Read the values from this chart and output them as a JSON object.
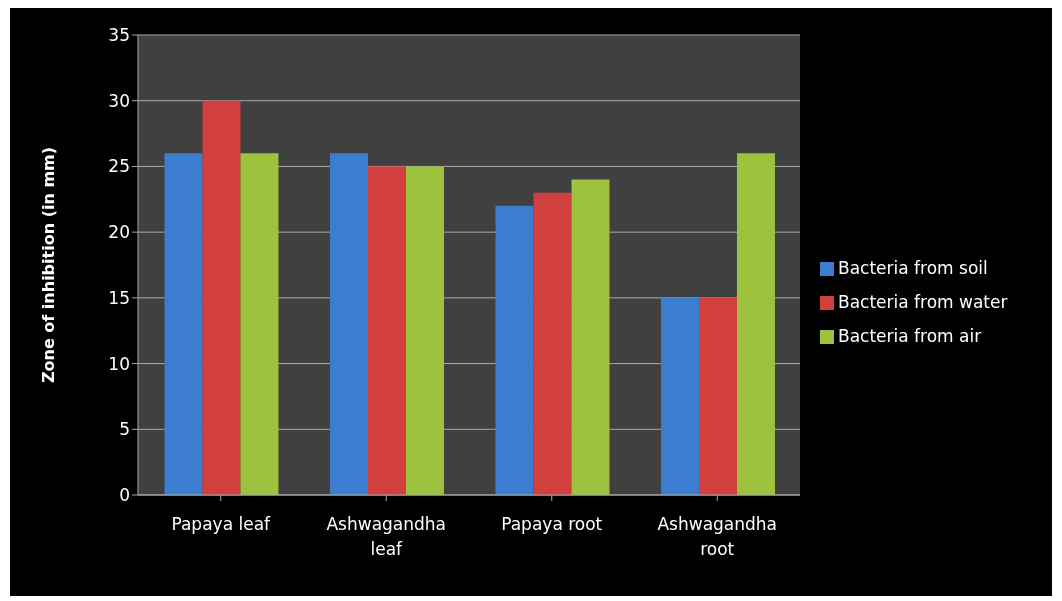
{
  "chart_data": {
    "type": "bar",
    "ylabel": "Zone of inhibition (in mm)",
    "categories": [
      "Papaya leaf",
      "Ashwagandha leaf",
      "Papaya root",
      "Ashwagandha root"
    ],
    "series": [
      {
        "name": "Bacteria from soil",
        "color": "#3d7dd0",
        "values": [
          26,
          26,
          22,
          15
        ]
      },
      {
        "name": "Bacteria from water",
        "color": "#d23f3f",
        "values": [
          30,
          25,
          23,
          15
        ]
      },
      {
        "name": "Bacteria from air",
        "color": "#9cc23e",
        "values": [
          26,
          25,
          24,
          26
        ]
      }
    ],
    "ylim": [
      0,
      35
    ],
    "yticks": [
      0,
      5,
      10,
      15,
      20,
      25,
      30,
      35
    ],
    "grid": "y",
    "legend": "right"
  }
}
